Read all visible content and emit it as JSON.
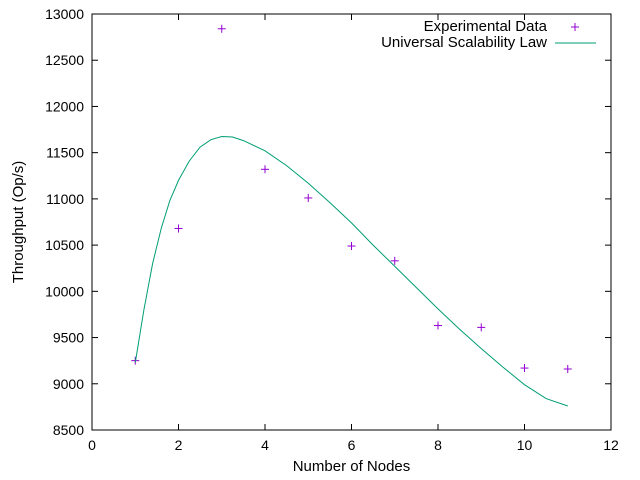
{
  "chart_data": {
    "type": "scatter",
    "title": "",
    "xlabel": "Number of Nodes",
    "ylabel": "Throughput (Op/s)",
    "xlim": [
      0,
      12
    ],
    "ylim": [
      8500,
      13000
    ],
    "x_ticks": [
      0,
      2,
      4,
      6,
      8,
      10,
      12
    ],
    "y_ticks": [
      8500,
      9000,
      9500,
      10000,
      10500,
      11000,
      11500,
      12000,
      12500,
      13000
    ],
    "grid": false,
    "legend_position": "top-right",
    "series": [
      {
        "name": "Experimental Data",
        "type": "scatter",
        "marker": "plus",
        "color": "#9400d3",
        "points": [
          {
            "x": 1,
            "y": 9250
          },
          {
            "x": 2,
            "y": 10680
          },
          {
            "x": 3,
            "y": 12840
          },
          {
            "x": 4,
            "y": 11320
          },
          {
            "x": 5,
            "y": 11010
          },
          {
            "x": 6,
            "y": 10490
          },
          {
            "x": 7,
            "y": 10330
          },
          {
            "x": 8,
            "y": 9630
          },
          {
            "x": 9,
            "y": 9610
          },
          {
            "x": 10,
            "y": 9170
          },
          {
            "x": 11,
            "y": 9160
          }
        ]
      },
      {
        "name": "Universal Scalability Law",
        "type": "line",
        "color": "#009e73",
        "points": [
          {
            "x": 1.0,
            "y": 9230
          },
          {
            "x": 1.2,
            "y": 9800
          },
          {
            "x": 1.4,
            "y": 10300
          },
          {
            "x": 1.6,
            "y": 10680
          },
          {
            "x": 1.8,
            "y": 10980
          },
          {
            "x": 2.0,
            "y": 11200
          },
          {
            "x": 2.25,
            "y": 11410
          },
          {
            "x": 2.5,
            "y": 11560
          },
          {
            "x": 2.75,
            "y": 11640
          },
          {
            "x": 3.0,
            "y": 11675
          },
          {
            "x": 3.25,
            "y": 11670
          },
          {
            "x": 3.5,
            "y": 11630
          },
          {
            "x": 4.0,
            "y": 11520
          },
          {
            "x": 4.5,
            "y": 11360
          },
          {
            "x": 5.0,
            "y": 11170
          },
          {
            "x": 5.5,
            "y": 10960
          },
          {
            "x": 6.0,
            "y": 10740
          },
          {
            "x": 6.5,
            "y": 10500
          },
          {
            "x": 7.0,
            "y": 10270
          },
          {
            "x": 7.5,
            "y": 10040
          },
          {
            "x": 8.0,
            "y": 9810
          },
          {
            "x": 8.5,
            "y": 9590
          },
          {
            "x": 9.0,
            "y": 9380
          },
          {
            "x": 9.5,
            "y": 9180
          },
          {
            "x": 10.0,
            "y": 8990
          },
          {
            "x": 10.5,
            "y": 8840
          },
          {
            "x": 11.0,
            "y": 8760
          }
        ]
      }
    ]
  }
}
